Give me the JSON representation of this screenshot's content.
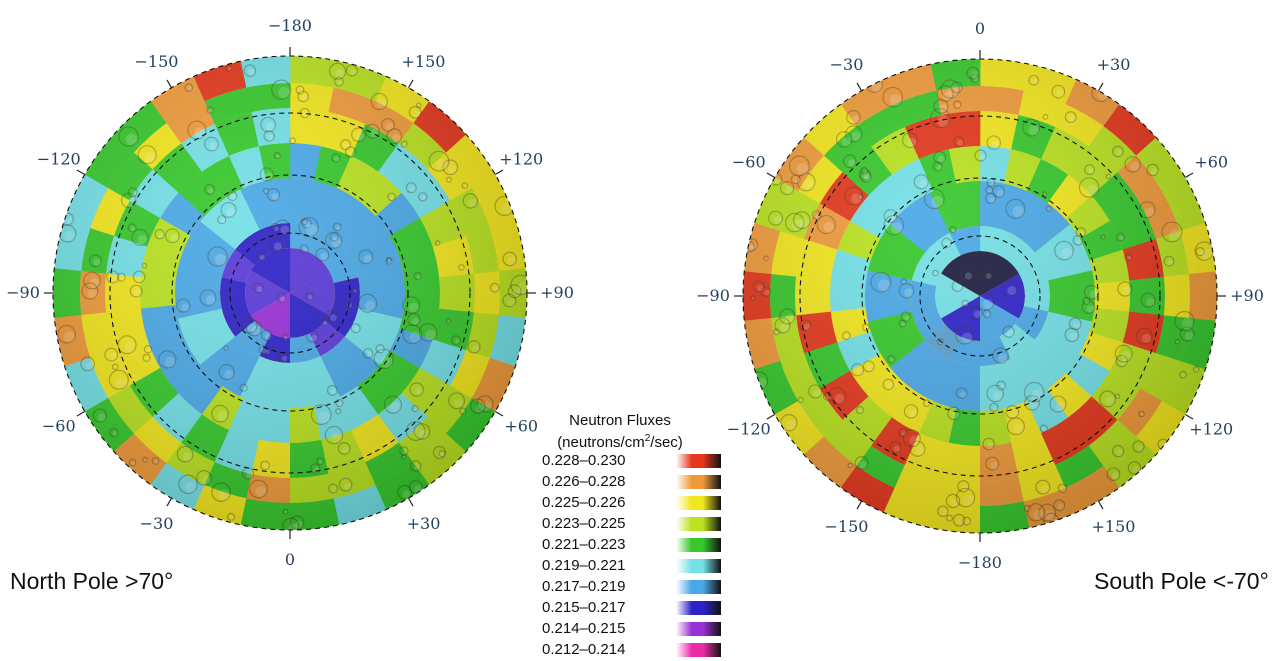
{
  "north": {
    "title": "North Pole >70°",
    "labels": [
      "−180",
      "+150",
      "+120",
      "+90",
      "+60",
      "+30",
      "0",
      "−30",
      "−60",
      "−90",
      "−120",
      "−150"
    ]
  },
  "south": {
    "title": "South Pole <-70°",
    "labels": [
      "0",
      "+30",
      "+60",
      "+90",
      "+120",
      "+150",
      "−180",
      "−150",
      "−120",
      "−90",
      "−60",
      "−30"
    ]
  },
  "legend": {
    "title": "Neutron Fluxes",
    "units_pre": "(neutrons/cm",
    "units_sup": "2",
    "units_post": "/sec)",
    "entries": [
      {
        "range": "0.228–0.230",
        "color": "#e4371c"
      },
      {
        "range": "0.226–0.228",
        "color": "#ef9a3a"
      },
      {
        "range": "0.225–0.226",
        "color": "#f2e61c"
      },
      {
        "range": "0.223–0.225",
        "color": "#b9e21f"
      },
      {
        "range": "0.221–0.223",
        "color": "#36c82c"
      },
      {
        "range": "0.219–0.221",
        "color": "#72e0e6"
      },
      {
        "range": "0.217–0.219",
        "color": "#4aa8e6"
      },
      {
        "range": "0.215–0.217",
        "color": "#2d22c8"
      },
      {
        "range": "0.214–0.215",
        "color": "#9a2fd6"
      },
      {
        "range": "0.212–0.214",
        "color": "#ec2aa8"
      }
    ]
  }
}
